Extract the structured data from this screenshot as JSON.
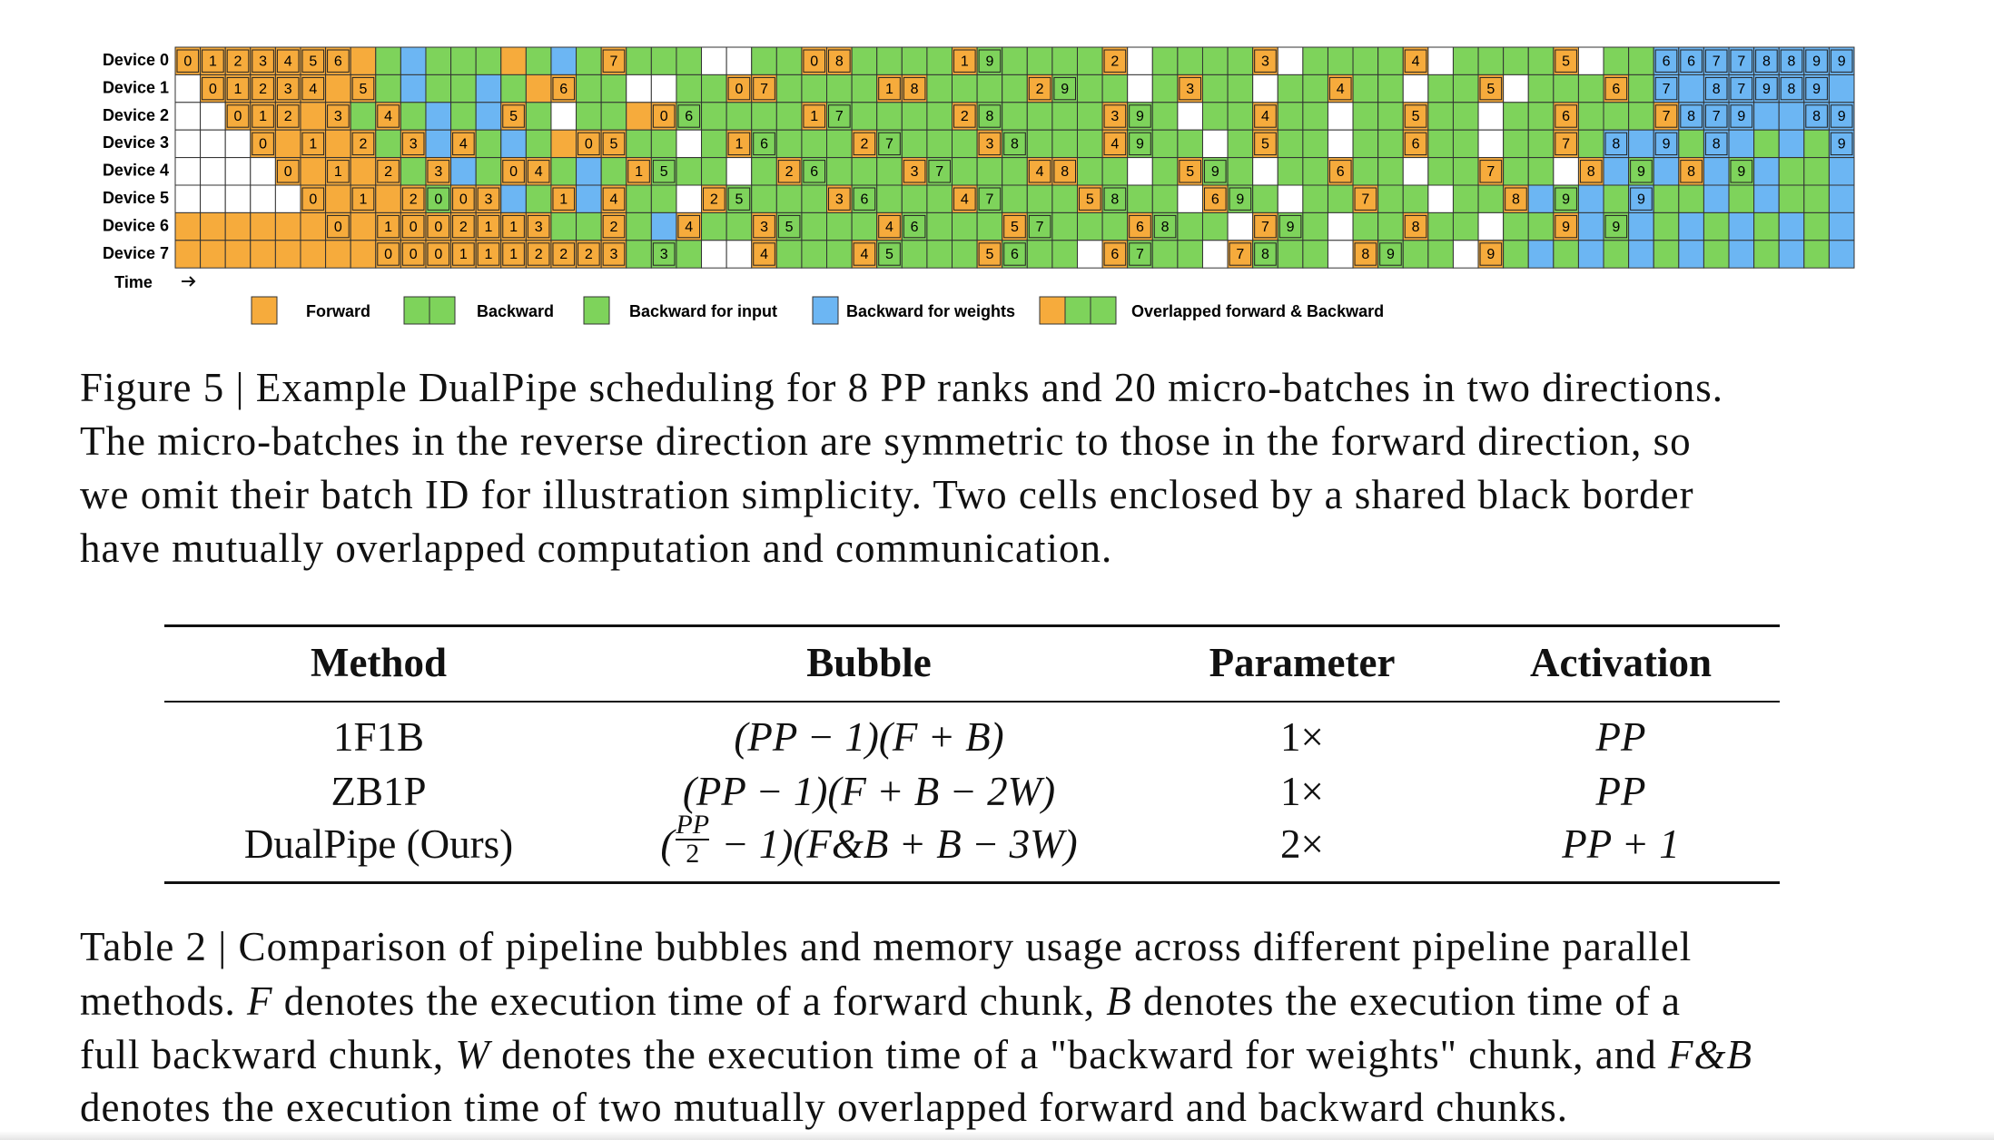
{
  "schedule": {
    "time_label": "Time",
    "colors": {
      "F": "#f6ab3c",
      "B": "#7ed35b",
      "I": "#7ed35b",
      "W": "#6cb6f3",
      "E": "#ffffff"
    },
    "rows": [
      {
        "label": "Device 0",
        "cells": [
          [
            "F",
            "0"
          ],
          [
            "F",
            "1"
          ],
          [
            "F",
            "2"
          ],
          [
            "F",
            "3"
          ],
          [
            "F",
            "4"
          ],
          [
            "F",
            "5"
          ],
          [
            "F",
            "6"
          ],
          "F",
          "B",
          "W",
          "B",
          "B",
          "B",
          "F",
          "B",
          "W",
          "B",
          [
            "F",
            "7"
          ],
          "B",
          "B",
          "B",
          "E",
          "E",
          "B",
          "B",
          [
            "F",
            "0"
          ],
          [
            "F",
            "8"
          ],
          "B",
          "B",
          "B",
          "B",
          [
            "F",
            "1"
          ],
          [
            "B",
            "9"
          ],
          "B",
          "B",
          "B",
          "B",
          [
            "F",
            "2"
          ],
          "E",
          "B",
          "B",
          "B",
          "B",
          [
            "F",
            "3"
          ],
          "E",
          "B",
          "B",
          "B",
          "B",
          [
            "F",
            "4"
          ],
          "E",
          "B",
          "B",
          "B",
          "B",
          [
            "F",
            "5"
          ],
          "E",
          "B",
          "B",
          [
            "W",
            "6"
          ],
          [
            "W",
            "6"
          ],
          [
            "W",
            "7"
          ],
          [
            "W",
            "7"
          ],
          [
            "W",
            "8"
          ],
          [
            "W",
            "8"
          ],
          [
            "W",
            "9"
          ],
          [
            "W",
            "9"
          ]
        ]
      },
      {
        "label": "Device 1",
        "cells": [
          "E",
          [
            "F",
            "0"
          ],
          [
            "F",
            "1"
          ],
          [
            "F",
            "2"
          ],
          [
            "F",
            "3"
          ],
          [
            "F",
            "4"
          ],
          "F",
          [
            "F",
            "5"
          ],
          "B",
          "W",
          "B",
          "B",
          "W",
          "B",
          "F",
          [
            "F",
            "6"
          ],
          "B",
          "B",
          "E",
          "E",
          "B",
          "B",
          [
            "F",
            "0"
          ],
          [
            "F",
            "7"
          ],
          "B",
          "B",
          "B",
          "B",
          [
            "F",
            "1"
          ],
          [
            "F",
            "8"
          ],
          "B",
          "B",
          "B",
          "B",
          [
            "F",
            "2"
          ],
          [
            "B",
            "9"
          ],
          "B",
          "B",
          "E",
          "B",
          [
            "F",
            "3"
          ],
          "B",
          "B",
          "E",
          "B",
          "B",
          [
            "F",
            "4"
          ],
          "B",
          "B",
          "E",
          "B",
          "B",
          [
            "F",
            "5"
          ],
          "E",
          "B",
          "B",
          "B",
          [
            "F",
            "6"
          ],
          "B",
          [
            "W",
            "7"
          ],
          "W",
          [
            "W",
            "8"
          ],
          [
            "W",
            "7"
          ],
          [
            "W",
            "9"
          ],
          [
            "W",
            "8"
          ],
          [
            "W",
            "9"
          ],
          "W"
        ]
      },
      {
        "label": "Device 2",
        "cells": [
          "E",
          "E",
          [
            "F",
            "0"
          ],
          [
            "F",
            "1"
          ],
          [
            "F",
            "2"
          ],
          "F",
          [
            "F",
            "3"
          ],
          "B",
          [
            "F",
            "4"
          ],
          "B",
          "W",
          "B",
          "W",
          [
            "F",
            "5"
          ],
          "B",
          "E",
          "B",
          "B",
          "F",
          [
            "F",
            "0"
          ],
          [
            "B",
            "6"
          ],
          "B",
          "B",
          "B",
          "B",
          [
            "F",
            "1"
          ],
          [
            "B",
            "7"
          ],
          "B",
          "B",
          "B",
          "B",
          [
            "F",
            "2"
          ],
          [
            "B",
            "8"
          ],
          "B",
          "B",
          "B",
          "B",
          [
            "F",
            "3"
          ],
          [
            "B",
            "9"
          ],
          "B",
          "E",
          "B",
          "B",
          [
            "F",
            "4"
          ],
          "B",
          "B",
          "E",
          "B",
          "B",
          [
            "F",
            "5"
          ],
          "B",
          "B",
          "E",
          "B",
          "B",
          [
            "F",
            "6"
          ],
          "B",
          "B",
          "B",
          [
            "F",
            "7"
          ],
          [
            "W",
            "8"
          ],
          [
            "W",
            "7"
          ],
          [
            "W",
            "9"
          ],
          "W",
          "W",
          [
            "W",
            "8"
          ],
          [
            "W",
            "9"
          ]
        ]
      },
      {
        "label": "Device 3",
        "cells": [
          "E",
          "E",
          "E",
          [
            "F",
            "0"
          ],
          "F",
          [
            "F",
            "1"
          ],
          "F",
          [
            "F",
            "2"
          ],
          "B",
          [
            "F",
            "3"
          ],
          "W",
          [
            "F",
            "4"
          ],
          "B",
          "W",
          "B",
          "F",
          [
            "F",
            "0"
          ],
          [
            "F",
            "5"
          ],
          "B",
          "B",
          "E",
          "B",
          [
            "F",
            "1"
          ],
          [
            "B",
            "6"
          ],
          "B",
          "B",
          "B",
          [
            "F",
            "2"
          ],
          [
            "B",
            "7"
          ],
          "B",
          "B",
          "B",
          [
            "F",
            "3"
          ],
          [
            "B",
            "8"
          ],
          "B",
          "B",
          "B",
          [
            "F",
            "4"
          ],
          [
            "B",
            "9"
          ],
          "B",
          "B",
          "E",
          "B",
          [
            "F",
            "5"
          ],
          "B",
          "B",
          "E",
          "B",
          "B",
          [
            "F",
            "6"
          ],
          "B",
          "B",
          "E",
          "B",
          "B",
          [
            "F",
            "7"
          ],
          "B",
          [
            "W",
            "8"
          ],
          "W",
          [
            "W",
            "9"
          ],
          "B",
          [
            "W",
            "8"
          ],
          "W",
          "B",
          "W",
          "B",
          [
            "W",
            "9"
          ]
        ]
      },
      {
        "label": "Device 4",
        "cells": [
          "E",
          "E",
          "E",
          "E",
          [
            "F",
            "0"
          ],
          "F",
          [
            "F",
            "1"
          ],
          "F",
          [
            "F",
            "2"
          ],
          "B",
          [
            "F",
            "3"
          ],
          "W",
          "B",
          [
            "F",
            "0"
          ],
          [
            "F",
            "4"
          ],
          "B",
          "W",
          "B",
          [
            "F",
            "1"
          ],
          [
            "B",
            "5"
          ],
          "B",
          "B",
          "E",
          "B",
          [
            "F",
            "2"
          ],
          [
            "B",
            "6"
          ],
          "B",
          "B",
          "B",
          [
            "F",
            "3"
          ],
          [
            "B",
            "7"
          ],
          "B",
          "B",
          "B",
          [
            "F",
            "4"
          ],
          [
            "F",
            "8"
          ],
          "B",
          "B",
          "E",
          "B",
          [
            "F",
            "5"
          ],
          [
            "B",
            "9"
          ],
          "B",
          "E",
          "B",
          "B",
          [
            "F",
            "6"
          ],
          "B",
          "B",
          "E",
          "B",
          "B",
          [
            "F",
            "7"
          ],
          "B",
          "B",
          "E",
          [
            "F",
            "8"
          ],
          "W",
          [
            "B",
            "9"
          ],
          "W",
          [
            "F",
            "8"
          ],
          "W",
          [
            "B",
            "9"
          ],
          "W",
          "B",
          "B",
          "W"
        ]
      },
      {
        "label": "Device 5",
        "cells": [
          "E",
          "E",
          "E",
          "E",
          "E",
          [
            "F",
            "0"
          ],
          "F",
          [
            "F",
            "1"
          ],
          "F",
          [
            "F",
            "2"
          ],
          [
            "B",
            "0"
          ],
          [
            "F",
            "0"
          ],
          [
            "F",
            "3"
          ],
          "W",
          "B",
          [
            "F",
            "1"
          ],
          "W",
          [
            "F",
            "4"
          ],
          "B",
          "B",
          "E",
          [
            "F",
            "2"
          ],
          [
            "B",
            "5"
          ],
          "B",
          "B",
          "B",
          [
            "F",
            "3"
          ],
          [
            "B",
            "6"
          ],
          "B",
          "B",
          "B",
          [
            "F",
            "4"
          ],
          [
            "B",
            "7"
          ],
          "B",
          "B",
          "B",
          [
            "F",
            "5"
          ],
          [
            "B",
            "8"
          ],
          "B",
          "B",
          "E",
          [
            "F",
            "6"
          ],
          [
            "B",
            "9"
          ],
          "B",
          "E",
          "B",
          "B",
          [
            "F",
            "7"
          ],
          "B",
          "B",
          "E",
          "B",
          "B",
          [
            "F",
            "8"
          ],
          "W",
          [
            "B",
            "9"
          ],
          "W",
          "B",
          [
            "W",
            "9"
          ],
          "B",
          "B",
          "W",
          "B",
          "W",
          "B",
          "B",
          "W"
        ]
      },
      {
        "label": "Device 6",
        "cells": [
          "F",
          "F",
          "F",
          "F",
          "F",
          "F",
          [
            "F",
            "0"
          ],
          "F",
          [
            "F",
            "1"
          ],
          [
            "F",
            "0"
          ],
          [
            "F",
            "0"
          ],
          [
            "F",
            "2"
          ],
          [
            "F",
            "1"
          ],
          [
            "F",
            "1"
          ],
          [
            "F",
            "3"
          ],
          "B",
          "B",
          [
            "F",
            "2"
          ],
          "B",
          "W",
          [
            "F",
            "4"
          ],
          "B",
          "B",
          [
            "F",
            "3"
          ],
          [
            "B",
            "5"
          ],
          "B",
          "B",
          "B",
          [
            "F",
            "4"
          ],
          [
            "B",
            "6"
          ],
          "B",
          "B",
          "B",
          [
            "F",
            "5"
          ],
          [
            "B",
            "7"
          ],
          "B",
          "B",
          "B",
          [
            "F",
            "6"
          ],
          [
            "B",
            "8"
          ],
          "B",
          "B",
          "E",
          [
            "F",
            "7"
          ],
          [
            "B",
            "9"
          ],
          "B",
          "E",
          "B",
          "B",
          [
            "F",
            "8"
          ],
          "B",
          "B",
          "E",
          "B",
          "B",
          [
            "F",
            "9"
          ],
          "W",
          [
            "B",
            "9"
          ],
          "W",
          "B",
          "W",
          "B",
          "W",
          "B",
          "W",
          "B",
          "W"
        ]
      },
      {
        "label": "Device 7",
        "cells": [
          "F",
          "F",
          "F",
          "F",
          "F",
          "F",
          "F",
          "F",
          [
            "F",
            "0"
          ],
          [
            "F",
            "0"
          ],
          [
            "F",
            "0"
          ],
          [
            "F",
            "1"
          ],
          [
            "F",
            "1"
          ],
          [
            "F",
            "1"
          ],
          [
            "F",
            "2"
          ],
          [
            "F",
            "2"
          ],
          [
            "F",
            "2"
          ],
          [
            "F",
            "3"
          ],
          "B",
          [
            "B",
            "3"
          ],
          "B",
          "E",
          "E",
          [
            "F",
            "4"
          ],
          "B",
          "B",
          "B",
          [
            "F",
            "4"
          ],
          [
            "B",
            "5"
          ],
          "B",
          "B",
          "B",
          [
            "F",
            "5"
          ],
          [
            "B",
            "6"
          ],
          "B",
          "B",
          "E",
          [
            "F",
            "6"
          ],
          [
            "B",
            "7"
          ],
          "B",
          "B",
          "E",
          [
            "F",
            "7"
          ],
          [
            "B",
            "8"
          ],
          "B",
          "B",
          "E",
          [
            "F",
            "8"
          ],
          [
            "B",
            "9"
          ],
          "B",
          "B",
          "E",
          [
            "F",
            "9"
          ],
          "B",
          "W",
          "B",
          "W",
          "B",
          "W",
          "B",
          "W",
          "B",
          "W",
          "B",
          "W",
          "B",
          "W"
        ]
      }
    ]
  },
  "legend": [
    {
      "label": "Forward",
      "kinds": [
        "F"
      ]
    },
    {
      "label": "Backward",
      "kinds": [
        "B",
        "B"
      ]
    },
    {
      "label": "Backward for input",
      "kinds": [
        "I"
      ]
    },
    {
      "label": "Backward for weights",
      "kinds": [
        "W"
      ]
    },
    {
      "label": "Overlapped forward & Backward",
      "kinds": [
        "F",
        "B",
        "B"
      ]
    }
  ],
  "figure_caption": [
    "Figure 5 | Example DualPipe scheduling for 8 PP ranks and 20 micro-batches in two directions.",
    "The micro-batches in the reverse direction are symmetric to those in the forward direction, so",
    "we omit their batch ID for illustration simplicity. Two cells enclosed by a shared black border",
    "have mutually overlapped computation and communication."
  ],
  "table": {
    "header": [
      "Method",
      "Bubble",
      "Parameter",
      "Activation"
    ],
    "rows": [
      [
        "1F1B",
        "(PP − 1)(F + B)",
        "1×",
        "PP"
      ],
      [
        "ZB1P",
        "(PP − 1)(F + B − 2W)",
        "1×",
        "PP"
      ],
      [
        "DualPipe (Ours)",
        {
          "pre": "(",
          "num": "PP",
          "den": "2",
          "post": " − 1)(F&B + B − 3W)"
        },
        "2×",
        "PP + 1"
      ]
    ]
  },
  "table_caption": [
    [
      "Table 2 | Comparison of pipeline bubbles and memory usage across different pipeline parallel"
    ],
    [
      "methods. ",
      {
        "math": "F"
      },
      " denotes the execution time of a forward chunk, ",
      {
        "math": "B"
      },
      " denotes the execution time of a"
    ],
    [
      "full backward chunk, ",
      {
        "math": "W"
      },
      " denotes the execution time of a \"backward for weights\" chunk, and ",
      {
        "math": "F&B"
      }
    ],
    [
      "denotes the execution time of two mutually overlapped forward and backward chunks."
    ]
  ]
}
